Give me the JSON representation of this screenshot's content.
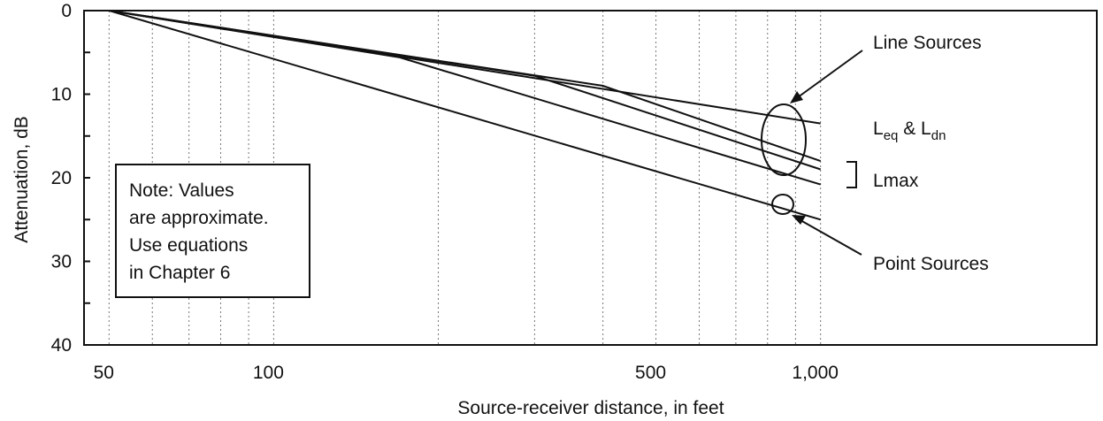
{
  "chart_data": {
    "type": "line",
    "xlabel": "Source-receiver distance, in feet",
    "ylabel": "Attenuation, dB",
    "x_scale": "log",
    "xlim": [
      45,
      3200
    ],
    "ylim": [
      0,
      40
    ],
    "y_inverted": true,
    "x_tick_labels": [
      {
        "value": 50,
        "label": "50"
      },
      {
        "value": 100,
        "label": "100"
      },
      {
        "value": 500,
        "label": "500"
      },
      {
        "value": 1000,
        "label": "1,000"
      }
    ],
    "y_tick_labels": [
      {
        "value": 0,
        "label": "0"
      },
      {
        "value": 10,
        "label": "10"
      },
      {
        "value": 20,
        "label": "20"
      },
      {
        "value": 30,
        "label": "30"
      },
      {
        "value": 40,
        "label": "40"
      }
    ],
    "x_gridlines": [
      50,
      60,
      70,
      80,
      90,
      100,
      200,
      300,
      400,
      500,
      600,
      700,
      800,
      900,
      1000
    ],
    "grid": "vertical dotted",
    "series": [
      {
        "values": [
          [
            50,
            0
          ],
          [
            1000,
            13.5
          ]
        ],
        "color": "#111111"
      },
      {
        "values": [
          [
            50,
            0
          ],
          [
            400,
            9.0
          ],
          [
            1000,
            18.0
          ]
        ],
        "color": "#111111"
      },
      {
        "values": [
          [
            50,
            0
          ],
          [
            300,
            7.8
          ],
          [
            1000,
            19.0
          ]
        ],
        "color": "#111111"
      },
      {
        "values": [
          [
            50,
            0
          ],
          [
            170,
            5.6
          ],
          [
            1000,
            20.8
          ]
        ],
        "color": "#111111"
      },
      {
        "values": [
          [
            50,
            0
          ],
          [
            1000,
            25.0
          ]
        ],
        "color": "#111111"
      }
    ],
    "annotations": [
      {
        "text": "Line Sources",
        "x": 1170,
        "y": 3.5
      },
      {
        "text_main": "L",
        "sub1": "eq",
        "mid": " & L",
        "sub2": "dn",
        "x": 1170,
        "y": 13.7
      },
      {
        "text": "Lmax",
        "x": 1170,
        "y": 20.2
      },
      {
        "text": "Point Sources",
        "x": 1170,
        "y": 30.4
      }
    ],
    "note": {
      "lines": [
        "Note: Values",
        "are approximate.",
        "Use equations",
        "in Chapter 6"
      ]
    }
  }
}
